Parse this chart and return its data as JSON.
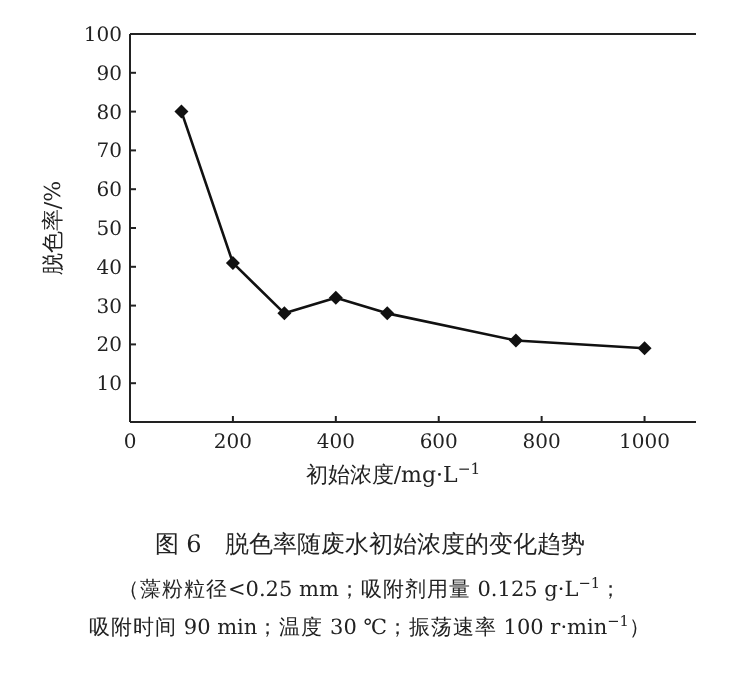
{
  "chart_data": {
    "type": "line",
    "title": "图 6　脱色率随废水初始浓度的变化趋势",
    "xlabel": "初始浓度/mg·L$^{−1}$",
    "ylabel": "脱色率/%",
    "annotations": [
      "（藻粉粒径<0.25 mm；吸附剂用量 0.125 g·L$^{−1}$；",
      "吸附时间 90 min；温度 30 ℃；振荡速率 100 r·min$^{−1}$）"
    ],
    "x": [
      100,
      200,
      300,
      400,
      500,
      750,
      1000
    ],
    "series": [
      {
        "color": "#111111",
        "values": [
          80,
          41,
          28,
          32,
          28,
          21,
          19
        ]
      }
    ],
    "xlim": [
      0,
      1100
    ],
    "ylim": [
      0,
      100
    ],
    "xticks": [
      0,
      200,
      400,
      600,
      800,
      1000
    ],
    "yticks": [
      10,
      20,
      30,
      40,
      50,
      60,
      70,
      80,
      90,
      100
    ],
    "marker": "diamond",
    "line_style": "solid"
  }
}
